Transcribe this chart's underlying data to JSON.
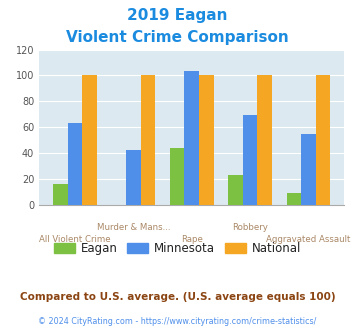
{
  "title_line1": "2019 Eagan",
  "title_line2": "Violent Crime Comparison",
  "categories": [
    "All Violent Crime",
    "Murder & Mans...",
    "Rape",
    "Robbery",
    "Aggravated Assault"
  ],
  "cat_labels_row1": [
    "",
    "Murder & Mans...",
    "",
    "Robbery",
    ""
  ],
  "cat_labels_row2": [
    "All Violent Crime",
    "",
    "Rape",
    "",
    "Aggravated Assault"
  ],
  "eagan": [
    16,
    0,
    44,
    23,
    9
  ],
  "minnesota": [
    63,
    42,
    103,
    69,
    55
  ],
  "national": [
    100,
    100,
    100,
    100,
    100
  ],
  "color_eagan": "#7dc142",
  "color_minnesota": "#4f8fea",
  "color_national": "#f5a623",
  "ylim": [
    0,
    120
  ],
  "yticks": [
    0,
    20,
    40,
    60,
    80,
    100,
    120
  ],
  "plot_bg": "#dce9f0",
  "title_color": "#1b8be0",
  "footer_text": "Compared to U.S. average. (U.S. average equals 100)",
  "footer_color": "#8B4513",
  "copyright_text": "© 2024 CityRating.com - https://www.cityrating.com/crime-statistics/",
  "copyright_color": "#4f8fea",
  "legend_labels": [
    "Eagan",
    "Minnesota",
    "National"
  ],
  "legend_text_color": "#222222"
}
